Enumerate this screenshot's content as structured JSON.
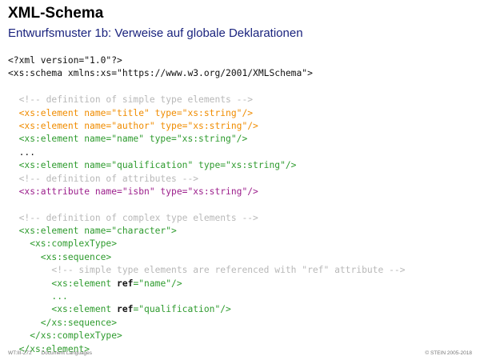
{
  "slide": {
    "title": "XML-Schema",
    "subtitle": "Entwurfsmuster 1b: Verweise auf globale Deklarationen"
  },
  "code": [
    {
      "segments": [
        {
          "text": "<?xml version=\"1.0\"?>",
          "style": "default"
        }
      ]
    },
    {
      "segments": [
        {
          "text": "<xs:schema xmlns:xs=\"https://www.w3.org/2001/XMLSchema\">",
          "style": "default"
        }
      ]
    },
    {
      "segments": [
        {
          "text": "",
          "style": "default"
        }
      ]
    },
    {
      "segments": [
        {
          "text": "  <!-- definition of simple type elements -->",
          "style": "comment"
        }
      ]
    },
    {
      "segments": [
        {
          "text": "  <xs:element name=\"title\" type=\"xs:string\"/>",
          "style": "orange"
        }
      ]
    },
    {
      "segments": [
        {
          "text": "  <xs:element name=\"author\" type=\"xs:string\"/>",
          "style": "orange"
        }
      ]
    },
    {
      "segments": [
        {
          "text": "  <xs:element name=\"name\" type=\"xs:string\"/>",
          "style": "green"
        }
      ]
    },
    {
      "segments": [
        {
          "text": "  ...",
          "style": "default"
        }
      ]
    },
    {
      "segments": [
        {
          "text": "  <xs:element name=\"qualification\" type=\"xs:string\"/>",
          "style": "green"
        }
      ]
    },
    {
      "segments": [
        {
          "text": "  <!-- definition of attributes -->",
          "style": "comment"
        }
      ]
    },
    {
      "segments": [
        {
          "text": "  <xs:attribute name=\"isbn\" type=\"xs:string\"/>",
          "style": "purple"
        }
      ]
    },
    {
      "segments": [
        {
          "text": "",
          "style": "default"
        }
      ]
    },
    {
      "segments": [
        {
          "text": "  <!-- definition of complex type elements -->",
          "style": "comment"
        }
      ]
    },
    {
      "segments": [
        {
          "text": "  <xs:element name=\"character\">",
          "style": "green"
        }
      ]
    },
    {
      "segments": [
        {
          "text": "    <xs:complexType>",
          "style": "green"
        }
      ]
    },
    {
      "segments": [
        {
          "text": "      <xs:sequence>",
          "style": "green"
        }
      ]
    },
    {
      "segments": [
        {
          "text": "        <!-- simple type elements are referenced with \"ref\" attribute -->",
          "style": "comment"
        }
      ]
    },
    {
      "segments": [
        {
          "text": "        <xs:element ",
          "style": "green"
        },
        {
          "text": "ref",
          "style": "ref"
        },
        {
          "text": "=\"name\"/>",
          "style": "green"
        }
      ]
    },
    {
      "segments": [
        {
          "text": "        ...",
          "style": "green"
        }
      ]
    },
    {
      "segments": [
        {
          "text": "        <xs:element ",
          "style": "green"
        },
        {
          "text": "ref",
          "style": "ref"
        },
        {
          "text": "=\"qualification\"/>",
          "style": "green"
        }
      ]
    },
    {
      "segments": [
        {
          "text": "      </xs:sequence>",
          "style": "green"
        }
      ]
    },
    {
      "segments": [
        {
          "text": "    </xs:complexType>",
          "style": "green"
        }
      ]
    },
    {
      "segments": [
        {
          "text": "  </xs:element>",
          "style": "green"
        }
      ]
    }
  ],
  "footer": {
    "page": "WT:III-272",
    "topic": "Document Languages",
    "copyright": "© STEIN 2005-2018"
  },
  "colors": {
    "comment": "#b8b8b8",
    "orange": "#f08c00",
    "green": "#2e9b2e",
    "purple": "#9c1f8c",
    "subtitle": "#1a237e"
  }
}
